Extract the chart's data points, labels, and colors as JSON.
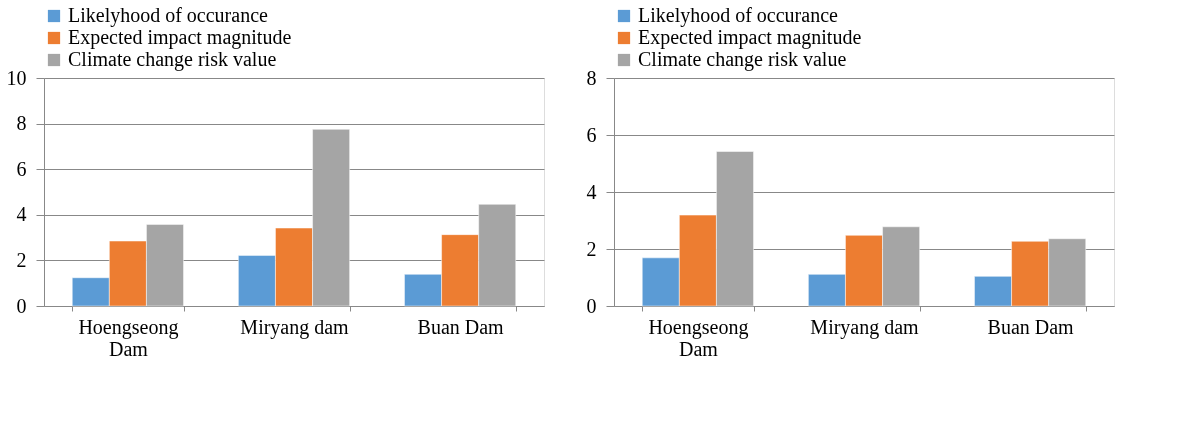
{
  "chart_data": [
    {
      "type": "bar",
      "categories": [
        "Hoengseong Dam",
        "Miryang dam",
        "Buan Dam"
      ],
      "series": [
        {
          "name": "Likelyhood of occurance",
          "color": "#5b9bd5",
          "values": [
            1.24,
            2.22,
            1.39
          ]
        },
        {
          "name": "Expected impact magnitude",
          "color": "#ed7d31",
          "values": [
            2.85,
            3.42,
            3.13
          ]
        },
        {
          "name": "Climate change risk value",
          "color": "#a5a5a5",
          "values": [
            3.58,
            7.75,
            4.46
          ]
        }
      ],
      "ylim": [
        0,
        10
      ],
      "yticks": [
        0,
        2,
        4,
        6,
        8,
        10
      ],
      "grid": "y",
      "legend": "top"
    },
    {
      "type": "bar",
      "categories": [
        "Hoengseong Dam",
        "Miryang dam",
        "Buan Dam"
      ],
      "series": [
        {
          "name": "Likelyhood of occurance",
          "color": "#5b9bd5",
          "values": [
            1.69,
            1.11,
            1.04
          ]
        },
        {
          "name": "Expected impact magnitude",
          "color": "#ed7d31",
          "values": [
            3.19,
            2.48,
            2.27
          ]
        },
        {
          "name": "Climate change risk value",
          "color": "#a5a5a5",
          "values": [
            5.42,
            2.78,
            2.36
          ]
        }
      ],
      "ylim": [
        0,
        8
      ],
      "yticks": [
        0,
        2,
        4,
        6,
        8
      ],
      "grid": "y",
      "legend": "top"
    }
  ]
}
